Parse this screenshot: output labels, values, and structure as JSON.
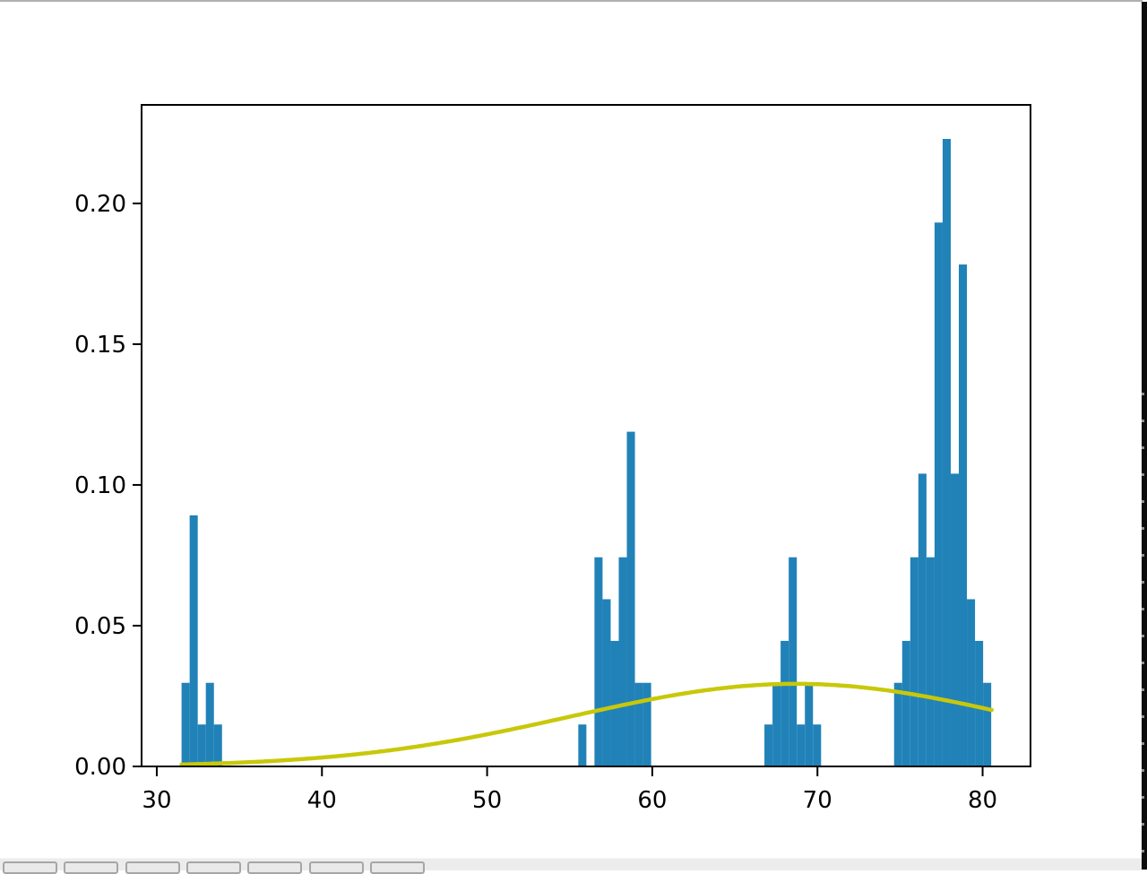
{
  "window": {
    "canvas_bg": "#ffffff",
    "top_border_color": "#b0b0b0"
  },
  "toolbar": {
    "background": "#ececec",
    "button_face": "#e9e9e9",
    "button_border": "#a6a6a6",
    "buttons": [
      {
        "name": "home"
      },
      {
        "name": "back"
      },
      {
        "name": "forward"
      },
      {
        "name": "pan"
      },
      {
        "name": "zoom"
      },
      {
        "name": "subplots"
      },
      {
        "name": "save"
      }
    ]
  },
  "screen_edge_strip": {
    "color": "#0c0c0c",
    "notch_color": "#909090"
  },
  "chart_data": {
    "type": "histogram_with_density_curve",
    "title": "",
    "xlabel": "",
    "ylabel": "",
    "grid": false,
    "legend": false,
    "xlim": [
      29.08,
      82.9
    ],
    "ylim": [
      0,
      0.235
    ],
    "x_ticks": [
      {
        "value": 30,
        "label": "30"
      },
      {
        "value": 40,
        "label": "40"
      },
      {
        "value": 50,
        "label": "50"
      },
      {
        "value": 60,
        "label": "60"
      },
      {
        "value": 70,
        "label": "70"
      },
      {
        "value": 80,
        "label": "80"
      }
    ],
    "y_ticks": [
      {
        "value": 0.0,
        "label": "0.00"
      },
      {
        "value": 0.05,
        "label": "0.05"
      },
      {
        "value": 0.1,
        "label": "0.10"
      },
      {
        "value": 0.15,
        "label": "0.15"
      },
      {
        "value": 0.2,
        "label": "0.20"
      }
    ],
    "bar_color": "#2182b8",
    "bin_width": 0.4902,
    "bars": [
      [
        31.5,
        0.0297
      ],
      [
        31.99,
        0.0892
      ],
      [
        32.48,
        0.0149
      ],
      [
        32.97,
        0.0297
      ],
      [
        33.46,
        0.0149
      ],
      [
        55.52,
        0.0149
      ],
      [
        56.5,
        0.0743
      ],
      [
        56.99,
        0.0594
      ],
      [
        57.48,
        0.0446
      ],
      [
        57.97,
        0.0743
      ],
      [
        58.46,
        0.1189
      ],
      [
        58.95,
        0.0297
      ],
      [
        59.44,
        0.0297
      ],
      [
        66.79,
        0.0149
      ],
      [
        67.28,
        0.0297
      ],
      [
        67.77,
        0.0446
      ],
      [
        68.26,
        0.0743
      ],
      [
        68.75,
        0.0149
      ],
      [
        69.24,
        0.0297
      ],
      [
        69.73,
        0.0149
      ],
      [
        74.64,
        0.0297
      ],
      [
        75.13,
        0.0446
      ],
      [
        75.62,
        0.0743
      ],
      [
        76.11,
        0.104
      ],
      [
        76.6,
        0.0743
      ],
      [
        77.09,
        0.1932
      ],
      [
        77.58,
        0.2229
      ],
      [
        78.07,
        0.104
      ],
      [
        78.56,
        0.1783
      ],
      [
        79.05,
        0.0594
      ],
      [
        79.54,
        0.0446
      ],
      [
        80.03,
        0.0297
      ]
    ],
    "curve": {
      "shape": "normal_pdf",
      "mu": 68.7,
      "sigma": 13.6,
      "peak": 0.02934,
      "x_start": 31.5,
      "x_end": 80.55,
      "color": "#c8c80a",
      "linewidth": 4.5
    },
    "tick_label_color": "#000000",
    "spine_color": "#000000"
  }
}
